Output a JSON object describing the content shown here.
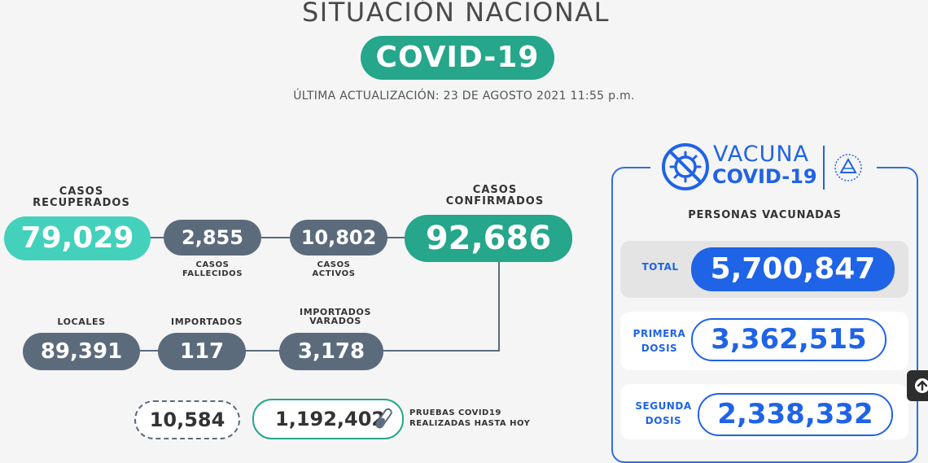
{
  "header": {
    "title": "SITUACIÓN NACIONAL",
    "badge": "COVID-19",
    "updated": "ÚLTIMA ACTUALIZACIÓN: 23 DE AGOSTO 2021 11:55 p.m."
  },
  "cases": {
    "recuperados": {
      "label_1": "CASOS",
      "label_2": "RECUPERADOS",
      "value": "79,029"
    },
    "fallecidos": {
      "value": "2,855",
      "label_1": "CASOS",
      "label_2": "FALLECIDOS"
    },
    "activos": {
      "value": "10,802",
      "label_1": "CASOS",
      "label_2": "ACTIVOS"
    },
    "confirmados": {
      "label_1": "CASOS",
      "label_2": "CONFIRMADOS",
      "value": "92,686"
    },
    "locales": {
      "label": "LOCALES",
      "value": "89,391"
    },
    "importados": {
      "label": "IMPORTADOS",
      "value": "117"
    },
    "importados_varados": {
      "label_1": "IMPORTADOS",
      "label_2": "VARADOS",
      "value": "3,178"
    }
  },
  "tests": {
    "daily_value": "10,584",
    "total_value": "1,192,402",
    "label_1": "PRUEBAS COVID19",
    "label_2": "REALIZADAS HASTA HOY",
    "icon": "test-tube-icon"
  },
  "vaccine": {
    "logo_word_1": "VACUNA",
    "logo_word_2": "COVID-19",
    "logo_icon": "virus-crossed-icon",
    "seal_icon": "national-seal-icon",
    "heading": "PERSONAS VACUNADAS",
    "total": {
      "label": "TOTAL",
      "value": "5,700,847"
    },
    "primera": {
      "label_1": "PRIMERA",
      "label_2": "DOSIS",
      "value": "3,362,515"
    },
    "segunda": {
      "label_1": "SEGUNDA",
      "label_2": "DOSIS",
      "value": "2,338,332"
    }
  },
  "colors": {
    "teal": "#43d1bc",
    "green": "#26a68a",
    "slate": "#5b6b7c",
    "blue": "#1f63e6"
  },
  "scroll_top_icon": "arrow-up-circle-icon"
}
